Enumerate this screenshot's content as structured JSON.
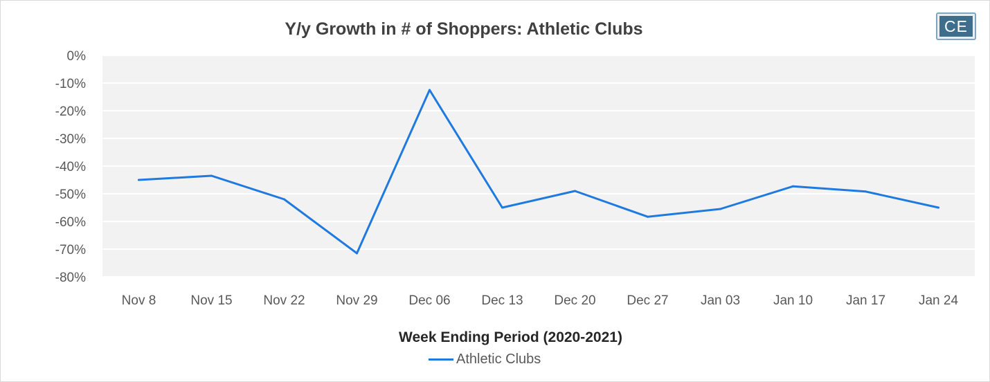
{
  "logo_text": "CE",
  "chart_data": {
    "type": "line",
    "title": "Y/y Growth in # of Shoppers: Athletic Clubs",
    "xlabel": "Week Ending Period (2020-2021)",
    "ylabel": "",
    "categories": [
      "Nov 8",
      "Nov 15",
      "Nov 22",
      "Nov 29",
      "Dec 06",
      "Dec 13",
      "Dec 20",
      "Dec 27",
      "Jan 03",
      "Jan 10",
      "Jan 17",
      "Jan 24"
    ],
    "y_ticks": [
      "0%",
      "-10%",
      "-20%",
      "-30%",
      "-40%",
      "-50%",
      "-60%",
      "-70%",
      "-80%"
    ],
    "ylim": [
      -80,
      0
    ],
    "grid": true,
    "legend": "bottom",
    "series": [
      {
        "name": "Athletic Clubs",
        "color": "#1f7ae0",
        "values": [
          -45,
          -43.5,
          -52,
          -71.5,
          -12.5,
          -55,
          -49,
          -58.3,
          -55.5,
          -47.3,
          -49.2,
          -55
        ]
      }
    ]
  }
}
